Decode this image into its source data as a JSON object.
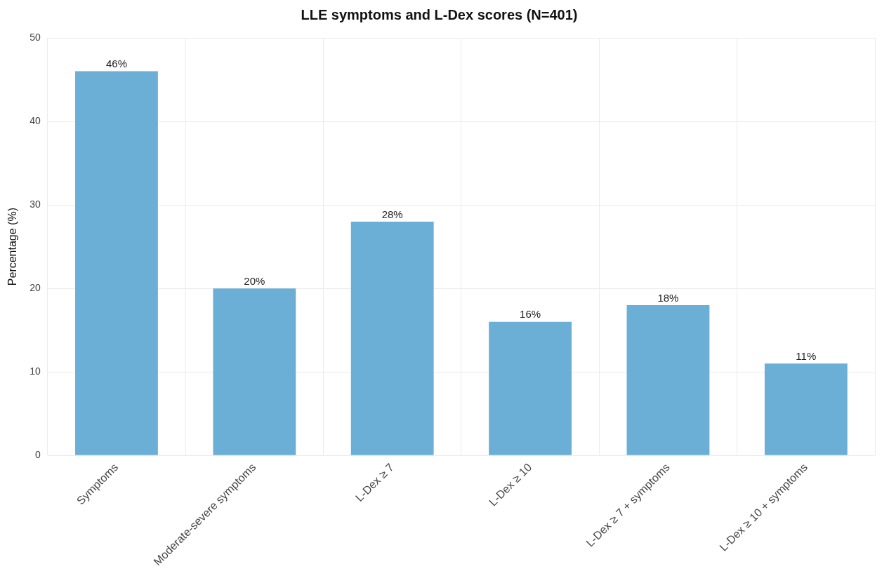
{
  "chart_data": {
    "type": "bar",
    "title": "LLE symptoms and L-Dex scores (N=401)",
    "ylabel": "Percentage (%)",
    "categories": [
      "Symptoms",
      "Moderate-severe symptoms",
      "L-Dex ≥ 7",
      "L-Dex ≥ 10",
      "L-Dex ≥ 7 + symptoms",
      "L-Dex ≥ 10 + symptoms"
    ],
    "values": [
      46,
      20,
      28,
      16,
      18,
      11
    ],
    "value_labels": [
      "46%",
      "20%",
      "28%",
      "16%",
      "18%",
      "11%"
    ],
    "color": "#6baed6",
    "ylim": [
      0,
      50
    ],
    "yticks": [
      0,
      10,
      20,
      30,
      40,
      50
    ],
    "grid": true
  }
}
